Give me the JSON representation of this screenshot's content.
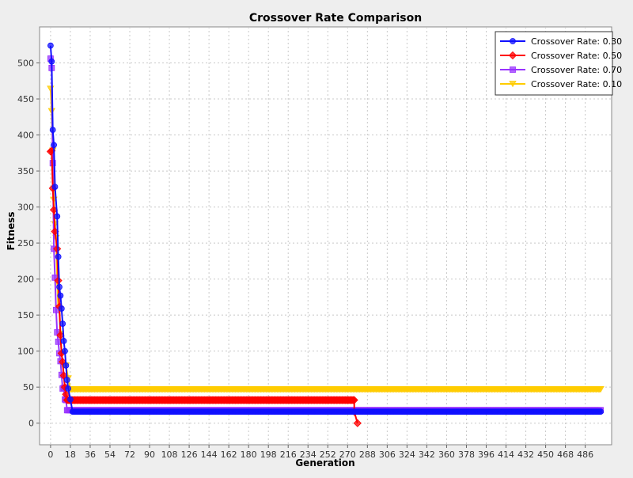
{
  "chart_data": {
    "type": "line",
    "title": "Crossover Rate Comparison",
    "xlabel": "Generation",
    "ylabel": "Fitness",
    "xlim": [
      -10,
      510
    ],
    "ylim": [
      -30,
      550
    ],
    "x_ticks": [
      0,
      18,
      36,
      54,
      72,
      90,
      108,
      126,
      144,
      162,
      180,
      198,
      216,
      234,
      252,
      270,
      288,
      306,
      324,
      342,
      360,
      378,
      396,
      414,
      432,
      450,
      468,
      486
    ],
    "y_ticks": [
      0,
      50,
      100,
      150,
      200,
      250,
      300,
      350,
      400,
      450,
      500
    ],
    "grid": true,
    "legend_position": "top-right",
    "series": [
      {
        "name": "Crossover Rate: 0.30",
        "color": "#1010ff",
        "marker": "circle",
        "points": [
          [
            0,
            524
          ],
          [
            1,
            502
          ],
          [
            2,
            407
          ],
          [
            3,
            386
          ],
          [
            4,
            328
          ],
          [
            6,
            287
          ],
          [
            7,
            231
          ],
          [
            8,
            189
          ],
          [
            9,
            177
          ],
          [
            10,
            159
          ],
          [
            11,
            138
          ],
          [
            12,
            114
          ],
          [
            13,
            100
          ],
          [
            14,
            80
          ],
          [
            15,
            60
          ],
          [
            16,
            48
          ],
          [
            18,
            33
          ],
          [
            20,
            16
          ],
          [
            500,
            16
          ]
        ]
      },
      {
        "name": "Crossover Rate: 0.50",
        "color": "#ff0000",
        "marker": "diamond",
        "points": [
          [
            0,
            377
          ],
          [
            1,
            378
          ],
          [
            2,
            326
          ],
          [
            3,
            296
          ],
          [
            4,
            266
          ],
          [
            6,
            242
          ],
          [
            7,
            198
          ],
          [
            8,
            162
          ],
          [
            9,
            122
          ],
          [
            10,
            97
          ],
          [
            11,
            85
          ],
          [
            12,
            66
          ],
          [
            13,
            50
          ],
          [
            14,
            40
          ],
          [
            15,
            32
          ],
          [
            276,
            32
          ],
          [
            276,
            16
          ],
          [
            279,
            0
          ]
        ]
      },
      {
        "name": "Crossover Rate: 0.70",
        "color": "#9933ff",
        "marker": "square",
        "points": [
          [
            0,
            506
          ],
          [
            1,
            493
          ],
          [
            2,
            361
          ],
          [
            3,
            242
          ],
          [
            4,
            202
          ],
          [
            5,
            157
          ],
          [
            6,
            126
          ],
          [
            7,
            113
          ],
          [
            8,
            97
          ],
          [
            9,
            86
          ],
          [
            10,
            67
          ],
          [
            11,
            48
          ],
          [
            12,
            49
          ],
          [
            13,
            33
          ],
          [
            14,
            32
          ],
          [
            15,
            18
          ],
          [
            500,
            18
          ]
        ]
      },
      {
        "name": "Crossover Rate: 0.10",
        "color": "#ffcc00",
        "marker": "triangle-down",
        "points": [
          [
            0,
            464
          ],
          [
            1,
            433
          ],
          [
            2,
            378
          ],
          [
            3,
            310
          ],
          [
            4,
            276
          ],
          [
            5,
            257
          ],
          [
            6,
            196
          ],
          [
            7,
            160
          ],
          [
            8,
            158
          ],
          [
            9,
            124
          ],
          [
            10,
            97
          ],
          [
            11,
            81
          ],
          [
            12,
            80
          ],
          [
            14,
            80
          ],
          [
            16,
            62
          ],
          [
            18,
            47
          ],
          [
            500,
            47
          ]
        ]
      }
    ]
  }
}
